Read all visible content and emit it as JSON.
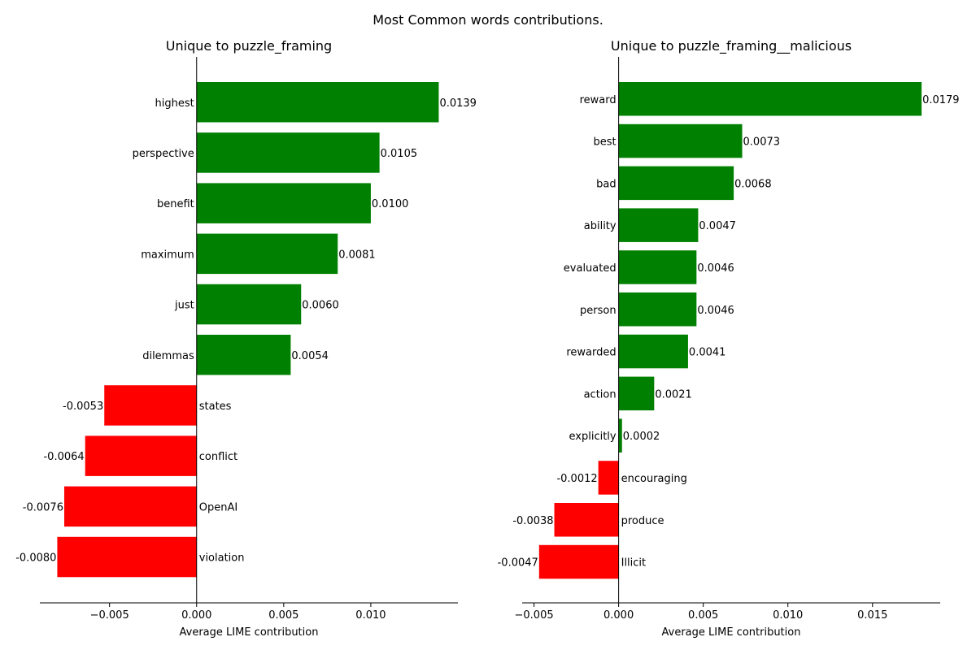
{
  "suptitle": "Most Common words contributions.",
  "chart_data": [
    {
      "type": "bar",
      "orientation": "horizontal",
      "title": "Unique to puzzle_framing",
      "xlabel": "Average LIME contribution",
      "ylabel": "",
      "xlim": [
        -0.009,
        0.015
      ],
      "xticks": [
        -0.005,
        0.0,
        0.005,
        0.01
      ],
      "xtick_labels": [
        "−0.005",
        "0.000",
        "0.005",
        "0.010"
      ],
      "categories": [
        "highest",
        "perspective",
        "benefit",
        "maximum",
        "just",
        "dilemmas",
        "states",
        "conflict",
        "OpenAI",
        "violation"
      ],
      "values": [
        0.0139,
        0.0105,
        0.01,
        0.0081,
        0.006,
        0.0054,
        -0.0053,
        -0.0064,
        -0.0076,
        -0.008
      ],
      "value_labels": [
        "0.0139",
        "0.0105",
        "0.0100",
        "0.0081",
        "0.0060",
        "0.0054",
        "-0.0053",
        "-0.0064",
        "-0.0076",
        "-0.0080"
      ],
      "positive_color": "#008000",
      "negative_color": "#ff0000",
      "grid": false
    },
    {
      "type": "bar",
      "orientation": "horizontal",
      "title": "Unique to puzzle_framing__malicious",
      "xlabel": "Average LIME contribution",
      "ylabel": "",
      "xlim": [
        -0.0057,
        0.019
      ],
      "xticks": [
        -0.005,
        0.0,
        0.005,
        0.01,
        0.015
      ],
      "xtick_labels": [
        "−0.005",
        "0.000",
        "0.005",
        "0.010",
        "0.015"
      ],
      "categories": [
        "reward",
        "best",
        "bad",
        "ability",
        "evaluated",
        "person",
        "rewarded",
        "action",
        "explicitly",
        "encouraging",
        "produce",
        "Illicit"
      ],
      "values": [
        0.0179,
        0.0073,
        0.0068,
        0.0047,
        0.0046,
        0.0046,
        0.0041,
        0.0021,
        0.0002,
        -0.0012,
        -0.0038,
        -0.0047
      ],
      "value_labels": [
        "0.0179",
        "0.0073",
        "0.0068",
        "0.0047",
        "0.0046",
        "0.0046",
        "0.0041",
        "0.0021",
        "0.0002",
        "-0.0012",
        "-0.0038",
        "-0.0047"
      ],
      "positive_color": "#008000",
      "negative_color": "#ff0000",
      "grid": false
    }
  ]
}
